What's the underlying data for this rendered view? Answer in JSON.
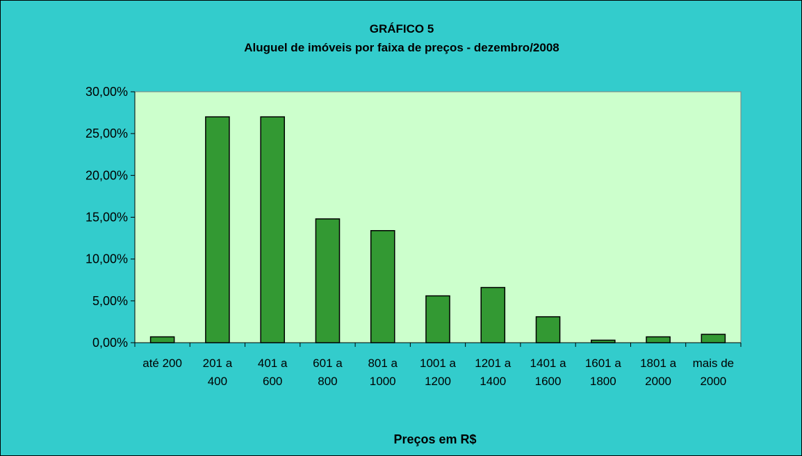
{
  "chart_data": {
    "type": "bar",
    "title": "GRÁFICO 5",
    "subtitle": "Aluguel de imóveis por faixa de preços -  dezembro/2008",
    "x_label": "Preços em R$",
    "categories": [
      "até 200",
      "201 a 400",
      "401 a 600",
      "601 a 800",
      "801 a 1000",
      "1001 a 1200",
      "1201 a 1400",
      "1401 a 1600",
      "1601 a 1800",
      "1801 a 2000",
      "mais de 2000"
    ],
    "values": [
      0.7,
      27.0,
      27.0,
      14.8,
      13.4,
      5.6,
      6.6,
      3.1,
      0.3,
      0.7,
      1.0
    ],
    "color": "#339933",
    "ylim": [
      0,
      30
    ],
    "yticks": [
      {
        "value": 0,
        "label": "0,00%"
      },
      {
        "value": 5,
        "label": "5,00%"
      },
      {
        "value": 10,
        "label": "10,00%"
      },
      {
        "value": 15,
        "label": "15,00%"
      },
      {
        "value": 20,
        "label": "20,00%"
      },
      {
        "value": 25,
        "label": "25,00%"
      },
      {
        "value": 30,
        "label": "30,00%"
      }
    ],
    "grid": false
  }
}
